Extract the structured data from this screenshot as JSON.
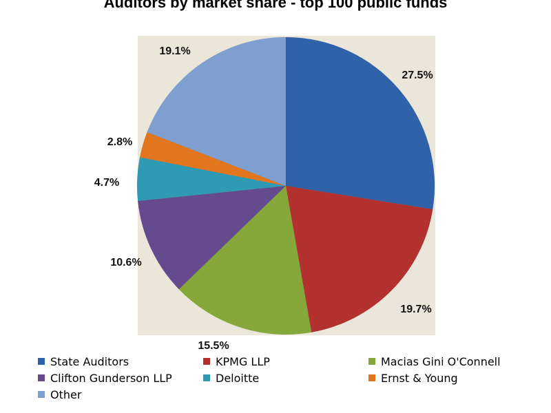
{
  "chart_data": {
    "type": "pie",
    "title": "Auditors by market share - top 100 public funds",
    "categories": [
      "State Auditors",
      "KPMG LLP",
      "Macias Gini O'Connell",
      "Clifton Gunderson LLP",
      "Deloitte",
      "Ernst & Young",
      "Other"
    ],
    "values": [
      27.5,
      19.7,
      15.5,
      10.6,
      4.7,
      2.8,
      19.1
    ],
    "data_labels": [
      "27.5%",
      "19.7%",
      "15.5%",
      "10.6%",
      "4.7%",
      "2.8%",
      "19.1%"
    ],
    "colors": [
      "#2f62a8",
      "#b33230",
      "#86a83a",
      "#664a8e",
      "#2f9ab4",
      "#e2761f",
      "#7f9fd0"
    ],
    "start_angle": "12 o'clock",
    "direction": "clockwise",
    "legend_position": "bottom",
    "plot_background": "#ebe6da"
  }
}
